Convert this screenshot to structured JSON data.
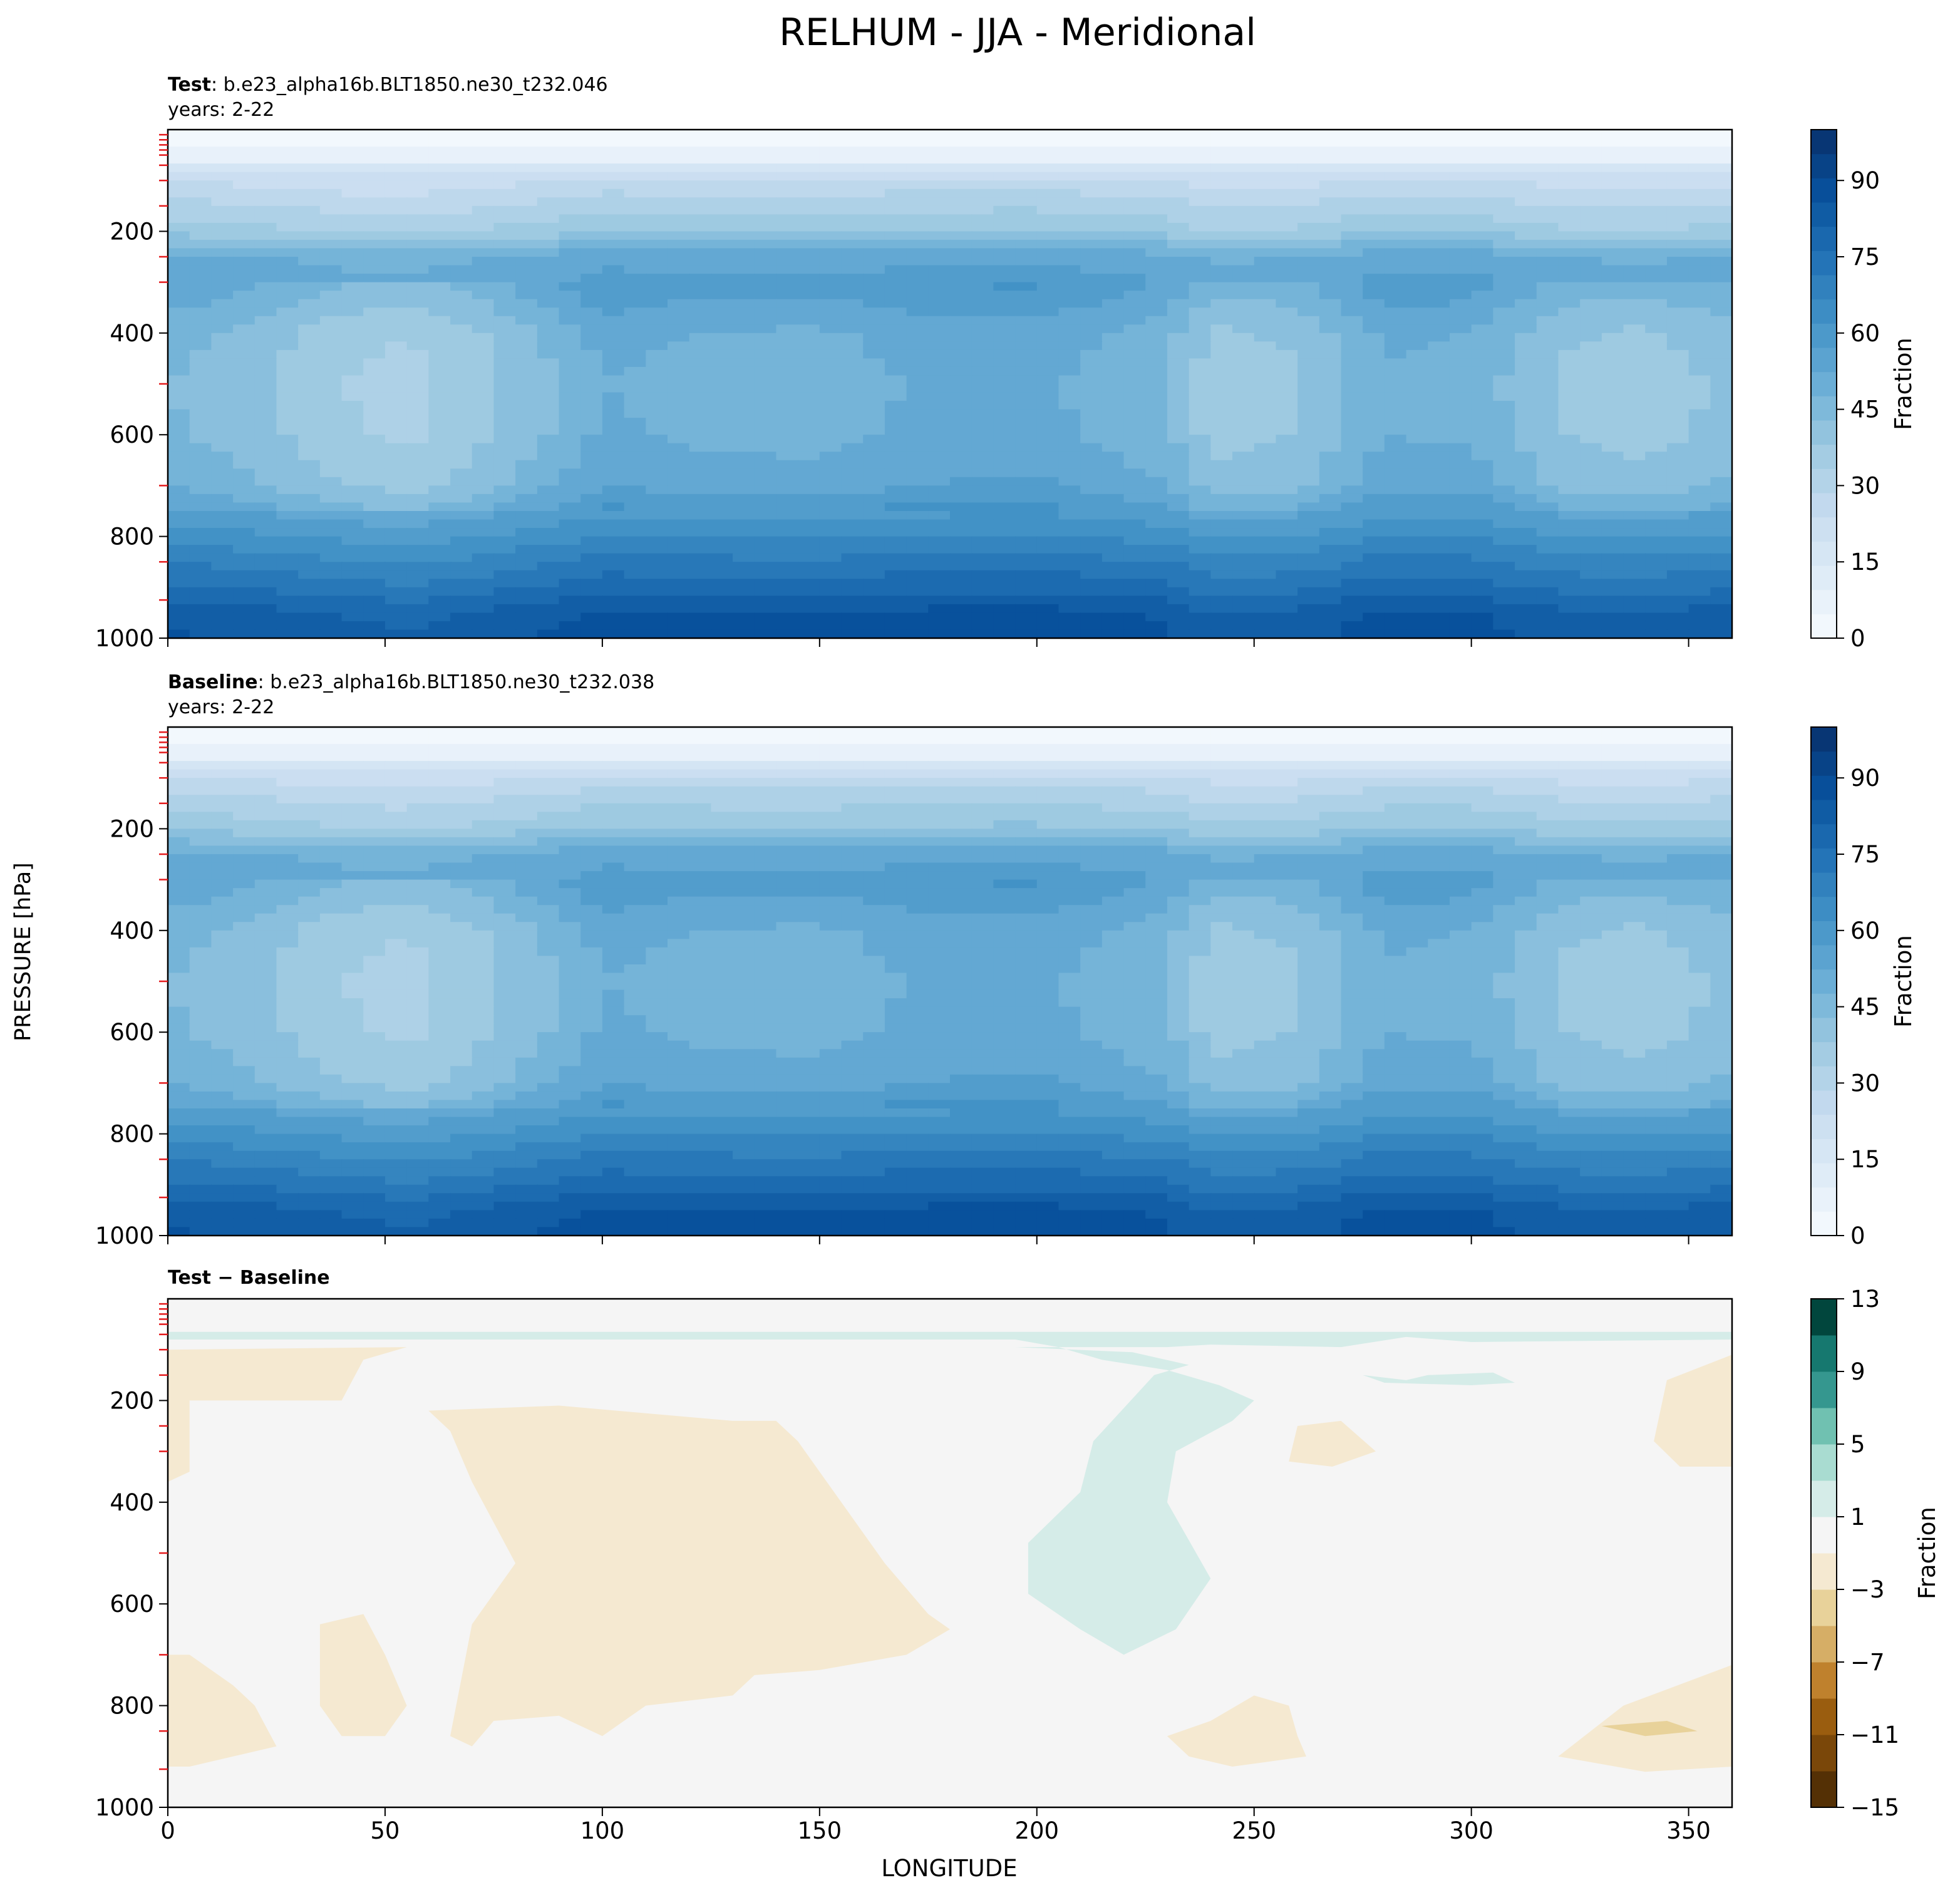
{
  "figure": {
    "title": "RELHUM - JJA - Meridional",
    "ylabel": "PRESSURE [hPa]",
    "xlabel": "LONGITUDE"
  },
  "chart_data": [
    {
      "type": "heatmap",
      "panel": "test",
      "label_bold": "Test",
      "label_rest": ": b.e23_alpha16b.BLT1850.ne30_t232.046",
      "years": "years: 2-22",
      "xlim": [
        0,
        360
      ],
      "ylim": [
        1000,
        0
      ],
      "x_ticks": [
        0,
        50,
        100,
        150,
        200,
        250,
        300,
        350
      ],
      "y_ticks": [
        200,
        400,
        600,
        800,
        1000
      ],
      "colorscale": "Blues",
      "colorbar": {
        "label": "Fraction",
        "ticks": [
          0,
          15,
          30,
          45,
          60,
          75,
          90
        ],
        "range": [
          0,
          100
        ],
        "levels": 21
      },
      "value_profile": {
        "pressure": [
          0,
          50,
          100,
          150,
          200,
          250,
          300,
          400,
          500,
          600,
          700,
          800,
          850,
          900,
          950,
          1000
        ],
        "relhum": [
          2,
          6,
          25,
          32,
          38,
          52,
          55,
          47,
          45,
          46,
          50,
          63,
          70,
          76,
          84,
          86
        ]
      },
      "longitude_anomaly": {
        "longitude": [
          0,
          20,
          40,
          55,
          70,
          90,
          100,
          120,
          150,
          170,
          200,
          230,
          240,
          260,
          280,
          300,
          320,
          340,
          360
        ],
        "relhum": [
          0,
          -4,
          -10,
          -12,
          -8,
          0,
          5,
          3,
          2,
          5,
          6,
          0,
          -8,
          -6,
          4,
          3,
          -6,
          -8,
          -4
        ]
      }
    },
    {
      "type": "heatmap",
      "panel": "baseline",
      "label_bold": "Baseline",
      "label_rest": ": b.e23_alpha16b.BLT1850.ne30_t232.038",
      "years": "years: 2-22",
      "xlim": [
        0,
        360
      ],
      "ylim": [
        1000,
        0
      ],
      "x_ticks": [
        0,
        50,
        100,
        150,
        200,
        250,
        300,
        350
      ],
      "y_ticks": [
        200,
        400,
        600,
        800,
        1000
      ],
      "colorscale": "Blues",
      "colorbar": {
        "label": "Fraction",
        "ticks": [
          0,
          15,
          30,
          45,
          60,
          75,
          90
        ],
        "range": [
          0,
          100
        ],
        "levels": 21
      },
      "value_profile": {
        "pressure": [
          0,
          50,
          100,
          150,
          200,
          250,
          300,
          400,
          500,
          600,
          700,
          800,
          850,
          900,
          950,
          1000
        ],
        "relhum": [
          2,
          6,
          26,
          33,
          39,
          52,
          55,
          47,
          45,
          46,
          50,
          63,
          70,
          76,
          84,
          86
        ]
      },
      "longitude_anomaly": {
        "longitude": [
          0,
          20,
          40,
          55,
          70,
          90,
          100,
          120,
          150,
          170,
          200,
          230,
          240,
          260,
          280,
          300,
          320,
          340,
          360
        ],
        "relhum": [
          0,
          -4,
          -10,
          -12,
          -8,
          0,
          5,
          3,
          2,
          5,
          6,
          0,
          -8,
          -6,
          4,
          3,
          -6,
          -8,
          -4
        ]
      }
    },
    {
      "type": "heatmap",
      "panel": "difference",
      "label_bold": "Test − Baseline",
      "xlim": [
        0,
        360
      ],
      "ylim": [
        1000,
        0
      ],
      "x_ticks": [
        0,
        50,
        100,
        150,
        200,
        250,
        300,
        350
      ],
      "y_ticks": [
        200,
        400,
        600,
        800,
        1000
      ],
      "colorscale": "BrBG",
      "colorbar": {
        "label": "Fraction",
        "ticks": [
          13,
          9,
          5,
          1,
          -3,
          -7,
          -11,
          -15
        ],
        "range": [
          -15,
          13
        ]
      },
      "background_value": 0,
      "regions": [
        {
          "sign": "positive",
          "value": 2,
          "points": [
            [
              0,
              65
            ],
            [
              360,
              65
            ],
            [
              360,
              80
            ],
            [
              300,
              85
            ],
            [
              285,
              75
            ],
            [
              270,
              95
            ],
            [
              240,
              90
            ],
            [
              230,
              95
            ],
            [
              220,
              95
            ],
            [
              205,
              95
            ],
            [
              195,
              80
            ],
            [
              155,
              80
            ],
            [
              0,
              80
            ]
          ]
        },
        {
          "sign": "positive",
          "value": 2,
          "points": [
            [
              195,
              95
            ],
            [
              222,
              105
            ],
            [
              235,
              130
            ],
            [
              227,
              150
            ],
            [
              213,
              280
            ],
            [
              210,
              380
            ],
            [
              198,
              480
            ],
            [
              198,
              580
            ],
            [
              210,
              650
            ],
            [
              220,
              700
            ],
            [
              232,
              650
            ],
            [
              240,
              550
            ],
            [
              230,
              400
            ],
            [
              232,
              300
            ],
            [
              245,
              240
            ],
            [
              250,
              200
            ],
            [
              242,
              170
            ],
            [
              230,
              140
            ],
            [
              215,
              120
            ],
            [
              205,
              95
            ]
          ]
        },
        {
          "sign": "positive",
          "value": 2,
          "points": [
            [
              275,
              150
            ],
            [
              285,
              160
            ],
            [
              290,
              150
            ],
            [
              305,
              145
            ],
            [
              310,
              165
            ],
            [
              300,
              170
            ],
            [
              280,
              165
            ]
          ]
        },
        {
          "sign": "negative",
          "value": -2,
          "points": [
            [
              0,
              100
            ],
            [
              55,
              95
            ],
            [
              45,
              120
            ],
            [
              40,
              200
            ],
            [
              20,
              200
            ],
            [
              5,
              200
            ],
            [
              5,
              340
            ],
            [
              0,
              360
            ]
          ]
        },
        {
          "sign": "negative",
          "value": -2,
          "points": [
            [
              60,
              220
            ],
            [
              90,
              210
            ],
            [
              110,
              225
            ],
            [
              130,
              240
            ],
            [
              140,
              240
            ],
            [
              145,
              280
            ],
            [
              150,
              340
            ],
            [
              155,
              400
            ],
            [
              160,
              460
            ],
            [
              165,
              520
            ],
            [
              170,
              570
            ],
            [
              175,
              620
            ],
            [
              180,
              650
            ],
            [
              170,
              700
            ],
            [
              150,
              730
            ],
            [
              135,
              740
            ],
            [
              130,
              780
            ],
            [
              110,
              800
            ],
            [
              100,
              860
            ],
            [
              90,
              820
            ],
            [
              75,
              830
            ],
            [
              70,
              880
            ],
            [
              65,
              860
            ],
            [
              70,
              640
            ],
            [
              80,
              520
            ],
            [
              75,
              440
            ],
            [
              70,
              360
            ],
            [
              65,
              260
            ]
          ]
        },
        {
          "sign": "negative",
          "value": -2,
          "points": [
            [
              0,
              700
            ],
            [
              5,
              700
            ],
            [
              15,
              760
            ],
            [
              20,
              800
            ],
            [
              25,
              880
            ],
            [
              15,
              900
            ],
            [
              5,
              920
            ],
            [
              0,
              920
            ]
          ]
        },
        {
          "sign": "negative",
          "value": -2,
          "points": [
            [
              35,
              640
            ],
            [
              45,
              620
            ],
            [
              50,
              700
            ],
            [
              55,
              800
            ],
            [
              50,
              860
            ],
            [
              40,
              860
            ],
            [
              35,
              800
            ]
          ]
        },
        {
          "sign": "negative",
          "value": -2,
          "points": [
            [
              240,
              830
            ],
            [
              250,
              780
            ],
            [
              258,
              800
            ],
            [
              260,
              860
            ],
            [
              262,
              900
            ],
            [
              245,
              920
            ],
            [
              235,
              900
            ],
            [
              230,
              860
            ]
          ]
        },
        {
          "sign": "negative",
          "value": -2,
          "points": [
            [
              335,
              800
            ],
            [
              360,
              720
            ],
            [
              360,
              920
            ],
            [
              340,
              930
            ],
            [
              320,
              900
            ]
          ]
        },
        {
          "sign": "negative",
          "value": -2,
          "points": [
            [
              345,
              160
            ],
            [
              360,
              110
            ],
            [
              360,
              330
            ],
            [
              348,
              330
            ],
            [
              342,
              280
            ]
          ]
        },
        {
          "sign": "negative",
          "value": -2,
          "points": [
            [
              260,
              250
            ],
            [
              270,
              240
            ],
            [
              278,
              300
            ],
            [
              268,
              330
            ],
            [
              258,
              320
            ]
          ]
        },
        {
          "sign": "negative",
          "value": -5,
          "points": [
            [
              330,
              840
            ],
            [
              345,
              830
            ],
            [
              352,
              850
            ],
            [
              340,
              860
            ]
          ]
        }
      ]
    }
  ]
}
